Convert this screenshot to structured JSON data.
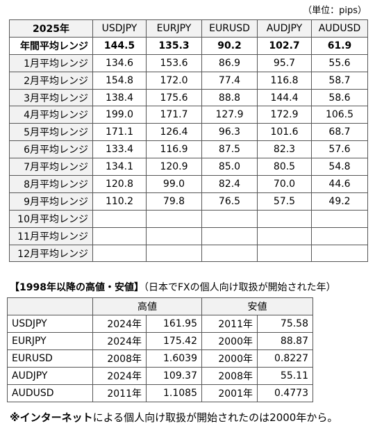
{
  "unit_note": "（単位：pips）",
  "table1": {
    "header": [
      "2025年",
      "USDJPY",
      "EURJPY",
      "EURUSD",
      "AUDJPY",
      "AUDUSD"
    ],
    "rows": [
      [
        "年間平均レンジ",
        "144.5",
        "135.3",
        "90.2",
        "102.7",
        "61.9"
      ],
      [
        "1月平均レンジ",
        "134.6",
        "153.6",
        "86.9",
        "95.7",
        "55.6"
      ],
      [
        "2月平均レンジ",
        "154.8",
        "172.0",
        "77.4",
        "116.8",
        "58.7"
      ],
      [
        "3月平均レンジ",
        "138.4",
        "175.6",
        "88.8",
        "144.4",
        "58.6"
      ],
      [
        "4月平均レンジ",
        "199.0",
        "171.7",
        "127.9",
        "172.9",
        "106.5"
      ],
      [
        "5月平均レンジ",
        "171.1",
        "126.4",
        "96.3",
        "101.6",
        "68.7"
      ],
      [
        "6月平均レンジ",
        "133.4",
        "116.9",
        "87.5",
        "82.3",
        "57.6"
      ],
      [
        "7月平均レンジ",
        "134.1",
        "120.9",
        "85.0",
        "80.5",
        "54.8"
      ],
      [
        "8月平均レンジ",
        "120.8",
        "99.0",
        "82.4",
        "70.0",
        "44.6"
      ],
      [
        "9月平均レンジ",
        "110.2",
        "79.8",
        "76.5",
        "57.5",
        "49.2"
      ],
      [
        "10月平均レンジ",
        null,
        null,
        null,
        null,
        null
      ],
      [
        "11月平均レンジ",
        null,
        null,
        null,
        null,
        null
      ],
      [
        "12月平均レンジ",
        null,
        null,
        null,
        null,
        null
      ]
    ]
  },
  "section2": {
    "title": "【1998年以降の高値・安値】",
    "subtitle": "（日本でFXの個人向け取扱が開始された年）"
  },
  "table2": {
    "header": [
      "高値",
      "安値"
    ],
    "rows": [
      [
        "USDJPY",
        "2024年",
        "161.95",
        "2011年",
        "75.58"
      ],
      [
        "EURJPY",
        "2024年",
        "175.42",
        "2000年",
        "88.87"
      ],
      [
        "EURUSD",
        "2008年",
        "1.6039",
        "2000年",
        "0.8227"
      ],
      [
        "AUDJPY",
        "2024年",
        "109.37",
        "2008年",
        "55.11"
      ],
      [
        "AUDUSD",
        "2011年",
        "1.1085",
        "2001年",
        "0.4773"
      ]
    ]
  },
  "footnote": {
    "emphasis": "※インターネット",
    "text": "による個人向け取扱が開始されたのは2000年から。"
  }
}
